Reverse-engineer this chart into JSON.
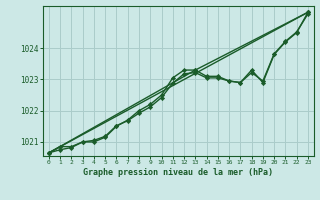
{
  "title": "Graphe pression niveau de la mer (hPa)",
  "bg_color": "#cce8e6",
  "grid_color": "#aaccca",
  "line_color": "#1a5c2a",
  "marker_color": "#1a5c2a",
  "xlim": [
    -0.5,
    23.5
  ],
  "ylim": [
    1020.55,
    1025.35
  ],
  "yticks": [
    1021,
    1022,
    1023,
    1024
  ],
  "xticks": [
    0,
    1,
    2,
    3,
    4,
    5,
    6,
    7,
    8,
    9,
    10,
    11,
    12,
    13,
    14,
    15,
    16,
    17,
    18,
    19,
    20,
    21,
    22,
    23
  ],
  "series": [
    {
      "x": [
        0,
        1,
        2,
        3,
        4,
        5,
        6,
        7,
        8,
        9,
        10,
        11,
        12,
        13,
        14,
        15,
        16,
        17,
        18,
        19,
        20,
        21,
        22,
        23
      ],
      "y": [
        1020.65,
        1020.85,
        1020.85,
        1021.0,
        1021.0,
        1021.15,
        1021.5,
        1021.7,
        1022.0,
        1022.2,
        1022.5,
        1023.05,
        1023.3,
        1023.3,
        1023.1,
        1023.1,
        1022.95,
        1022.9,
        1023.3,
        1022.9,
        1023.8,
        1024.2,
        1024.5,
        1025.15
      ],
      "marker": "D",
      "markersize": 2.2,
      "linewidth": 1.0
    },
    {
      "x": [
        0,
        1,
        2,
        3,
        4,
        5,
        6,
        7,
        8,
        9,
        10,
        11,
        12,
        13,
        14,
        15,
        16,
        17,
        18,
        19,
        20,
        21,
        22,
        23
      ],
      "y": [
        1020.65,
        1020.75,
        1020.82,
        1021.0,
        1021.05,
        1021.18,
        1021.52,
        1021.68,
        1021.92,
        1022.12,
        1022.42,
        1022.88,
        1023.18,
        1023.22,
        1023.05,
        1023.05,
        1022.95,
        1022.9,
        1023.22,
        1022.95,
        1023.82,
        1024.22,
        1024.52,
        1025.1
      ],
      "marker": "D",
      "markersize": 2.2,
      "linewidth": 1.0
    },
    {
      "x": [
        0,
        23
      ],
      "y": [
        1020.65,
        1025.15
      ],
      "marker": "D",
      "markersize": 2.2,
      "linewidth": 1.0
    },
    {
      "x": [
        0,
        13,
        23
      ],
      "y": [
        1020.65,
        1023.3,
        1025.15
      ],
      "marker": "D",
      "markersize": 2.2,
      "linewidth": 1.0
    }
  ]
}
